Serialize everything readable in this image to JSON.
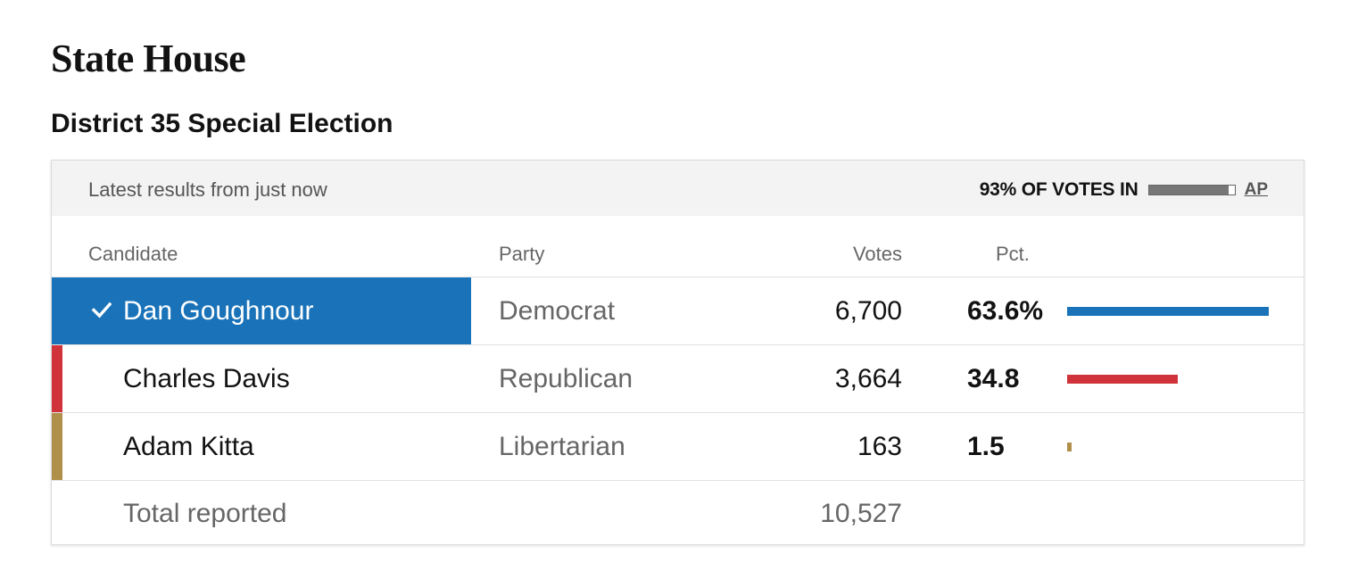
{
  "office_title": "State House",
  "race_title": "District 35 Special Election",
  "header": {
    "updated": "Latest results from just now",
    "reporting": "93% OF VOTES IN",
    "reporting_fraction": 0.93,
    "source": "AP"
  },
  "columns": {
    "candidate": "Candidate",
    "party": "Party",
    "votes": "Votes",
    "pct": "Pct."
  },
  "candidates": [
    {
      "name": "Dan Goughnour",
      "party": "Democrat",
      "votes": "6,700",
      "pct": "63.6%",
      "pct_value": 63.6,
      "color": "#1a73b9",
      "winner": true
    },
    {
      "name": "Charles Davis",
      "party": "Republican",
      "votes": "3,664",
      "pct": "34.8",
      "pct_value": 34.8,
      "color": "#d0343a",
      "winner": false
    },
    {
      "name": "Adam Kitta",
      "party": "Libertarian",
      "votes": "163",
      "pct": "1.5",
      "pct_value": 1.5,
      "color": "#b08f4b",
      "winner": false
    }
  ],
  "total": {
    "label": "Total reported",
    "votes": "10,527"
  }
}
